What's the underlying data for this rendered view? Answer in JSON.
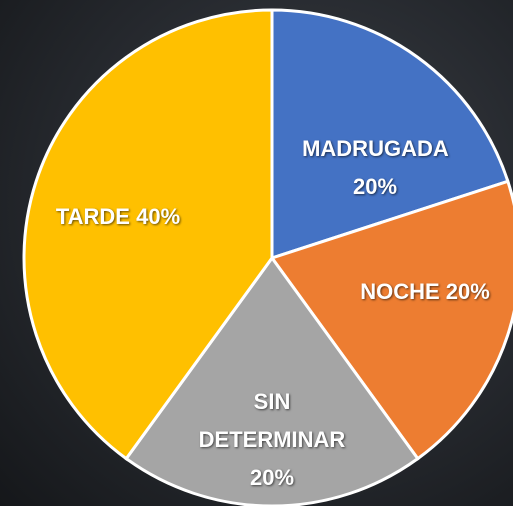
{
  "chart_data": {
    "type": "pie",
    "categories": [
      "MADRUGADA",
      "NOCHE",
      "SIN DETERMINAR",
      "TARDE"
    ],
    "values": [
      20,
      20,
      20,
      40
    ],
    "value_labels": [
      "20%",
      "20%",
      "20%",
      "40%"
    ],
    "colors": [
      "#4472c4",
      "#ed7d31",
      "#a5a5a5",
      "#ffc000"
    ]
  }
}
